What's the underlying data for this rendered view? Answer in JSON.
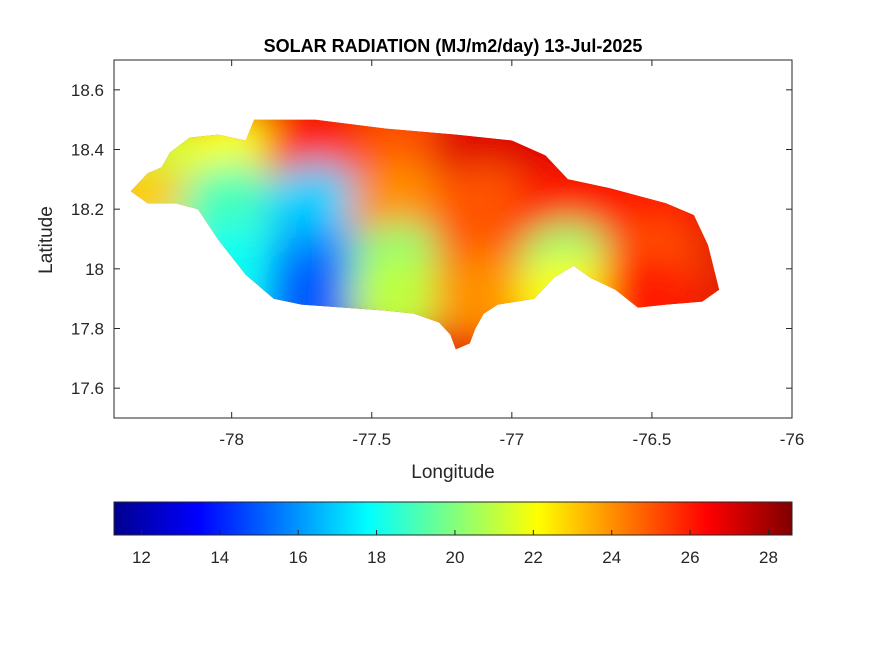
{
  "chart_data": {
    "type": "heatmap",
    "title": "SOLAR RADIATION (MJ/m2/day) 13-Jul-2025",
    "xlabel": "Longitude",
    "ylabel": "Latitude",
    "xlim": [
      -78.42,
      -76.0
    ],
    "ylim": [
      17.5,
      18.7
    ],
    "x_ticks": [
      -78,
      -77.5,
      -77,
      -76.5,
      -76
    ],
    "x_tick_labels": [
      "-78",
      "-77.5",
      "-77",
      "-76.5",
      "-76"
    ],
    "y_ticks": [
      17.6,
      17.8,
      18.0,
      18.2,
      18.4,
      18.6
    ],
    "y_tick_labels": [
      "17.6",
      "17.8",
      "18",
      "18.2",
      "18.4",
      "18.6"
    ],
    "colormap": "jet",
    "colorbar": {
      "orientation": "horizontal",
      "range": [
        11.3,
        28.6
      ],
      "ticks": [
        12,
        14,
        16,
        18,
        20,
        22,
        24,
        26,
        28
      ],
      "tick_labels": [
        "12",
        "14",
        "16",
        "18",
        "20",
        "22",
        "24",
        "26",
        "28"
      ]
    },
    "grid": false,
    "region_outline": [
      [
        -78.36,
        18.26
      ],
      [
        -78.3,
        18.32
      ],
      [
        -78.25,
        18.34
      ],
      [
        -78.22,
        18.39
      ],
      [
        -78.15,
        18.44
      ],
      [
        -78.05,
        18.45
      ],
      [
        -77.95,
        18.43
      ],
      [
        -77.92,
        18.5
      ],
      [
        -77.7,
        18.5
      ],
      [
        -77.45,
        18.47
      ],
      [
        -77.2,
        18.45
      ],
      [
        -77.0,
        18.43
      ],
      [
        -76.88,
        18.38
      ],
      [
        -76.8,
        18.3
      ],
      [
        -76.65,
        18.27
      ],
      [
        -76.45,
        18.22
      ],
      [
        -76.35,
        18.18
      ],
      [
        -76.3,
        18.08
      ],
      [
        -76.26,
        17.93
      ],
      [
        -76.32,
        17.89
      ],
      [
        -76.45,
        17.88
      ],
      [
        -76.55,
        17.87
      ],
      [
        -76.63,
        17.93
      ],
      [
        -76.72,
        17.97
      ],
      [
        -76.78,
        18.01
      ],
      [
        -76.85,
        17.97
      ],
      [
        -76.92,
        17.9
      ],
      [
        -77.05,
        17.88
      ],
      [
        -77.1,
        17.85
      ],
      [
        -77.13,
        17.8
      ],
      [
        -77.15,
        17.75
      ],
      [
        -77.2,
        17.73
      ],
      [
        -77.22,
        17.78
      ],
      [
        -77.26,
        17.82
      ],
      [
        -77.35,
        17.85
      ],
      [
        -77.45,
        17.86
      ],
      [
        -77.6,
        17.87
      ],
      [
        -77.75,
        17.88
      ],
      [
        -77.85,
        17.9
      ],
      [
        -77.95,
        17.98
      ],
      [
        -78.05,
        18.1
      ],
      [
        -78.12,
        18.2
      ],
      [
        -78.2,
        18.22
      ],
      [
        -78.3,
        18.22
      ]
    ],
    "values_grid": {
      "lon": [
        -78.3,
        -78.0,
        -77.7,
        -77.4,
        -77.1,
        -76.8,
        -76.5
      ],
      "lat": [
        18.4,
        18.2,
        18.0,
        17.9
      ],
      "z": [
        [
          21,
          22,
          26,
          25,
          27,
          27,
          27
        ],
        [
          23,
          19,
          17,
          24,
          25,
          26,
          26
        ],
        [
          20,
          18,
          16,
          20,
          25,
          20,
          25
        ],
        [
          20,
          18,
          15,
          21,
          24,
          22,
          26
        ]
      ]
    }
  }
}
